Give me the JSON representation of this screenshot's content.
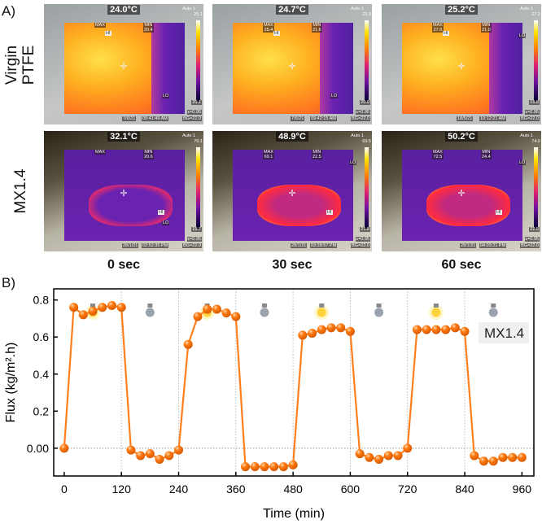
{
  "panel_a_label": "A)",
  "panel_b_label": "B)",
  "row_labels": [
    "Virgin\nPTFE",
    "MX1.4"
  ],
  "row_labels_lines": [
    [
      "Virgin",
      "PTFE"
    ],
    [
      "MX1.4"
    ]
  ],
  "time_labels": [
    "0 sec",
    "30 sec",
    "60 sec"
  ],
  "thermal_images": [
    {
      "sample": "Virgin PTFE",
      "center_temp": "24.0°C",
      "mode": "Auto 1",
      "scale_max": "25.1",
      "scale_min": "20.1",
      "max_label": "MAX",
      "max_value": "",
      "min_label": "MIN",
      "min_value": "20.4",
      "date": "7/6/21",
      "time": "09:41:49 AM",
      "emissivity": "ε=0.95",
      "bg": "BG=22.0",
      "hi_tag": "HI",
      "lo_tag": "LO"
    },
    {
      "sample": "Virgin PTFE",
      "center_temp": "24.7°C",
      "mode": "Auto 1",
      "scale_max": "25.9",
      "scale_min": "20.9",
      "max_label": "MAX",
      "max_value": "25.4",
      "min_label": "MIN",
      "min_value": "21.6",
      "date": "7/6/21",
      "time": "09:42:15 AM",
      "emissivity": "ε=0.95",
      "bg": "BG=22.0",
      "hi_tag": "HI",
      "lo_tag": "LO"
    },
    {
      "sample": "Virgin PTFE",
      "center_temp": "25.2°C",
      "mode": "Auto 1",
      "scale_max": "27.2",
      "scale_min": "19.8",
      "max_label": "MAX",
      "max_value": "27.6",
      "min_label": "MIN",
      "min_value": "21.0",
      "date": "18/5/21",
      "time": "10:12:21 AM",
      "emissivity": "ε=0.95",
      "bg": "BG=22.0",
      "hi_tag": "HI",
      "lo_tag": "LO"
    },
    {
      "sample": "MX1.4",
      "center_temp": "32.1°C",
      "mode": "Auto 1",
      "scale_max": "70.1",
      "scale_min": "19.7",
      "max_label": "MAX",
      "max_value": "",
      "min_label": "MIN",
      "min_value": "20.6",
      "date": "28/1/21",
      "time": "02:52:35 PM",
      "emissivity": "ε=0.95",
      "bg": "BG=22.0",
      "hi_tag": "HI",
      "lo_tag": "LO"
    },
    {
      "sample": "MX1.4",
      "center_temp": "48.9°C",
      "mode": "Auto 1",
      "scale_max": "69.5",
      "scale_min": "21.8",
      "max_label": "MAX",
      "max_value": "69.1",
      "min_label": "MIN",
      "min_value": "22.5",
      "date": "28/1/21",
      "time": "03:28:57 PM",
      "emissivity": "ε=0.95",
      "bg": "BG=22.0",
      "hi_tag": "HI",
      "lo_tag": "LO"
    },
    {
      "sample": "MX1.4",
      "center_temp": "50.2°C",
      "mode": "Auto 1",
      "scale_max": "74.0",
      "scale_min": "22.5",
      "max_label": "MAX",
      "max_value": "72.5",
      "min_label": "MIN",
      "min_value": "24.4",
      "date": "28/1/21",
      "time": "04:03:21 PM",
      "emissivity": "ε=0.95",
      "bg": "BG=22.0",
      "hi_tag": "HI",
      "lo_tag": "LO"
    }
  ],
  "chart_data": {
    "type": "line",
    "title": "",
    "xlabel": "Time (min)",
    "ylabel": "Flux (kg/m².h)",
    "xlim": [
      -22,
      985
    ],
    "ylim": [
      -0.15,
      0.86
    ],
    "xticks": [
      0,
      120,
      240,
      360,
      480,
      600,
      720,
      840,
      960
    ],
    "yticks": [
      0.0,
      0.2,
      0.4,
      0.6,
      0.8
    ],
    "ytick_labels": [
      "0.00",
      "0.2",
      "0.4",
      "0.6",
      "0.8"
    ],
    "grid": "vertical dotted lines every 120 min, dotted zero line",
    "legend": {
      "text": "MX1.4",
      "placement": "right"
    },
    "light_states": [
      {
        "center": 60,
        "state": "on"
      },
      {
        "center": 180,
        "state": "off"
      },
      {
        "center": 300,
        "state": "on"
      },
      {
        "center": 420,
        "state": "off"
      },
      {
        "center": 540,
        "state": "on"
      },
      {
        "center": 660,
        "state": "off"
      },
      {
        "center": 780,
        "state": "on"
      },
      {
        "center": 900,
        "state": "off"
      }
    ],
    "series": [
      {
        "name": "MX1.4",
        "color": "#ff7f1e",
        "x": [
          0,
          20,
          40,
          60,
          80,
          100,
          120,
          140,
          160,
          180,
          200,
          220,
          240,
          260,
          280,
          300,
          320,
          340,
          360,
          380,
          400,
          420,
          440,
          460,
          480,
          500,
          520,
          540,
          560,
          580,
          600,
          620,
          640,
          660,
          680,
          700,
          720,
          740,
          760,
          780,
          800,
          820,
          840,
          860,
          880,
          900,
          920,
          940,
          960
        ],
        "y": [
          0,
          0.76,
          0.72,
          0.74,
          0.76,
          0.77,
          0.76,
          -0.01,
          -0.04,
          -0.03,
          -0.06,
          -0.04,
          -0.01,
          0.56,
          0.71,
          0.75,
          0.75,
          0.73,
          0.71,
          -0.1,
          -0.1,
          -0.1,
          -0.1,
          -0.1,
          -0.09,
          0.61,
          0.62,
          0.64,
          0.65,
          0.65,
          0.63,
          -0.03,
          -0.05,
          -0.06,
          -0.04,
          -0.04,
          0.0,
          0.64,
          0.64,
          0.64,
          0.64,
          0.65,
          0.63,
          -0.04,
          -0.07,
          -0.07,
          -0.05,
          -0.05,
          -0.05
        ]
      }
    ]
  }
}
